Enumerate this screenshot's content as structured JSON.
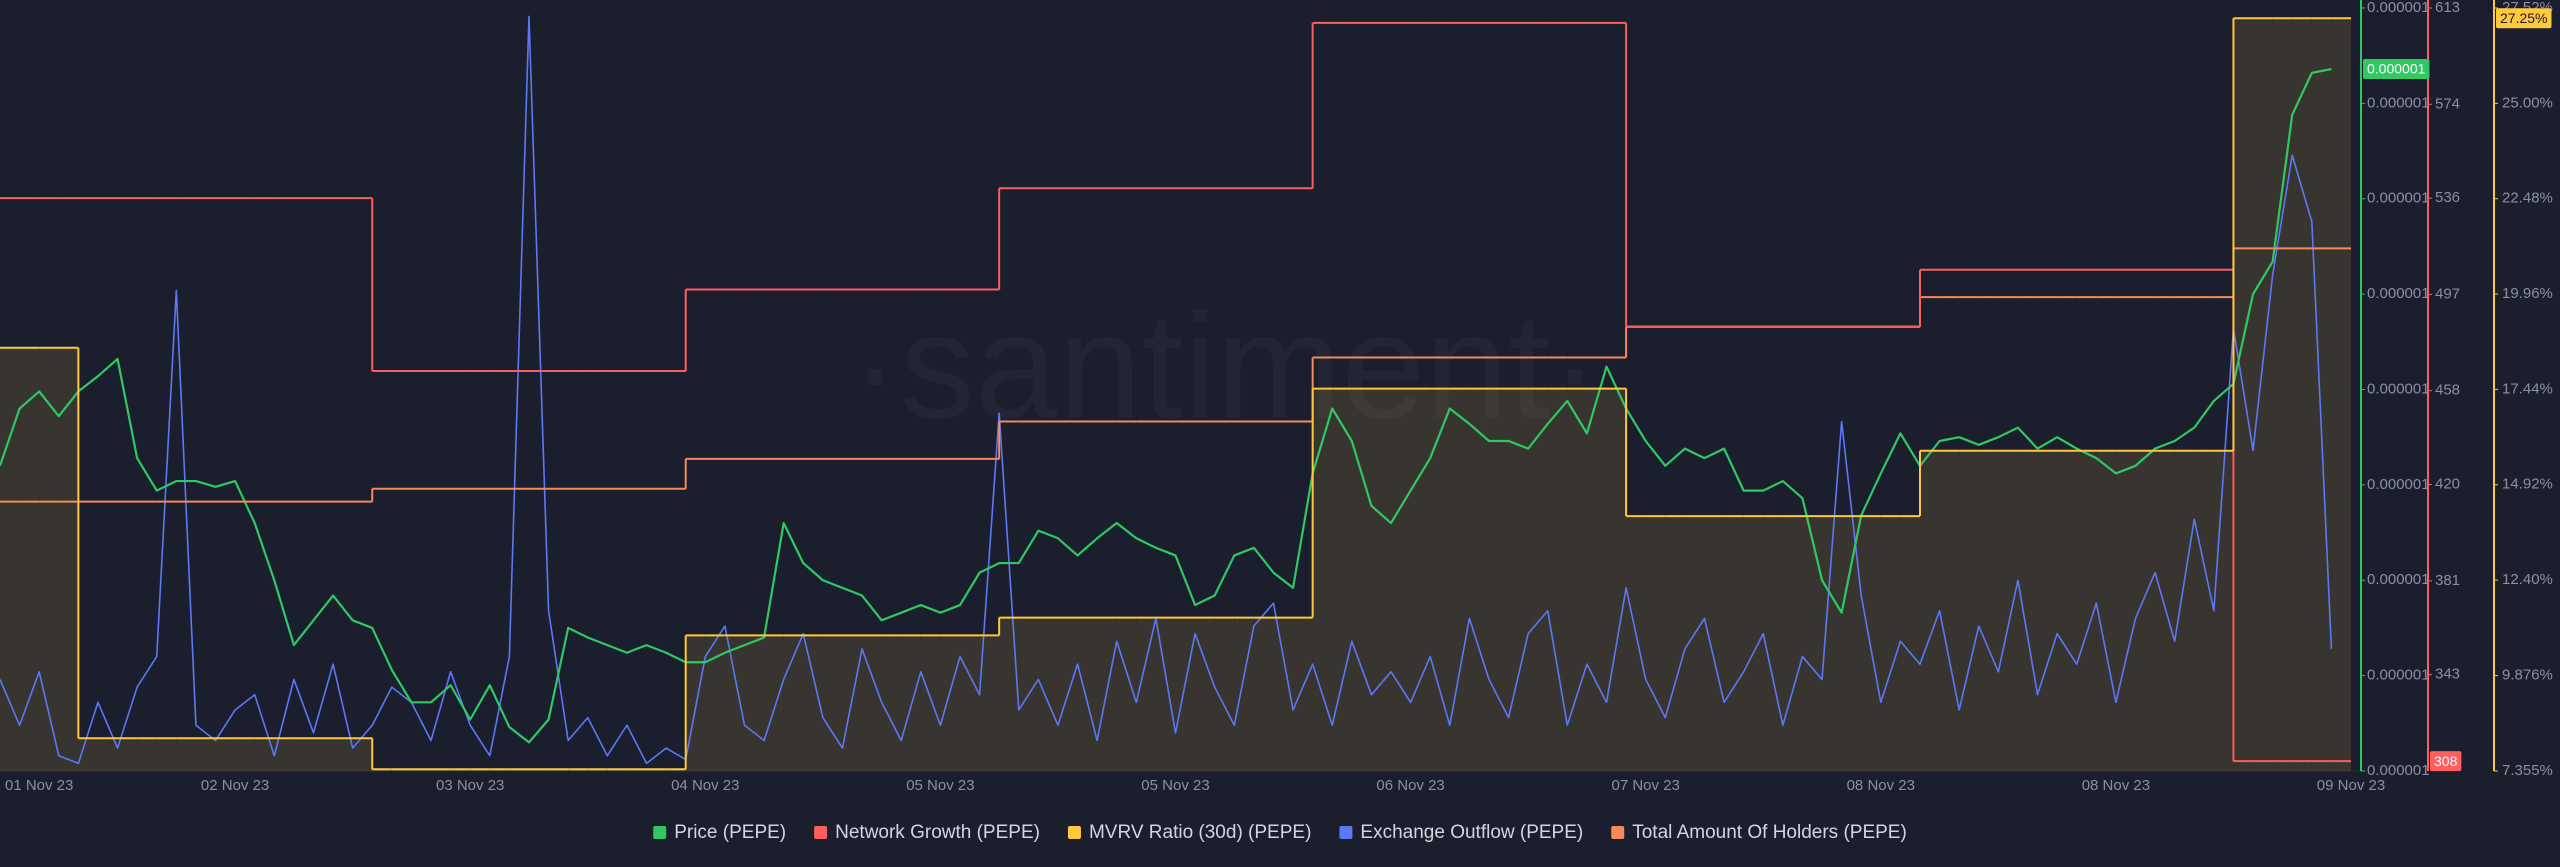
{
  "chart_data": {
    "type": "line",
    "watermark": "·santiment·",
    "legend": "bottom",
    "categories": [
      null,
      null,
      "01 Nov 23",
      null,
      null,
      null,
      null,
      null,
      null,
      null,
      null,
      null,
      "02 Nov 23",
      null,
      null,
      null,
      null,
      null,
      null,
      null,
      null,
      null,
      null,
      null,
      "03 Nov 23",
      null,
      null,
      null,
      null,
      null,
      null,
      null,
      null,
      null,
      null,
      null,
      "04 Nov 23",
      null,
      null,
      null,
      null,
      null,
      null,
      null,
      null,
      null,
      null,
      null,
      "05 Nov 23",
      null,
      null,
      null,
      null,
      null,
      null,
      null,
      null,
      null,
      null,
      null,
      "05 Nov 23",
      null,
      null,
      null,
      null,
      null,
      null,
      null,
      null,
      null,
      null,
      null,
      "06 Nov 23",
      null,
      null,
      null,
      null,
      null,
      null,
      null,
      null,
      null,
      null,
      null,
      "07 Nov 23",
      null,
      null,
      null,
      null,
      null,
      null,
      null,
      null,
      null,
      null,
      null,
      "08 Nov 23",
      null,
      null,
      null,
      null,
      null,
      null,
      null,
      null,
      null,
      null,
      null,
      "08 Nov 23",
      null,
      null,
      null,
      null,
      null,
      null,
      null,
      null,
      null,
      null,
      null,
      "09 Nov 23"
    ],
    "ylim": [
      1e-06,
      1.4e-06
    ],
    "yticks": [
      {
        "value": 1.4e-06,
        "label": "0.000001"
      },
      {
        "value": 1.35e-06,
        "label": "0.000001"
      },
      {
        "value": 1.3e-06,
        "label": "0.000001"
      },
      {
        "value": 1.25e-06,
        "label": "0.000001"
      },
      {
        "value": 1.2e-06,
        "label": "0.000001"
      },
      {
        "value": 1.15e-06,
        "label": "0.000001"
      },
      {
        "value": 1.1e-06,
        "label": "0.000001"
      },
      {
        "value": 1.05e-06,
        "label": "0.000001"
      },
      {
        "value": 1e-06,
        "label": "0.000001"
      }
    ],
    "y2lim": [
      304,
      613
    ],
    "y2ticks": [
      613,
      574,
      536,
      497,
      458,
      420,
      381,
      343
    ],
    "y3lim": [
      7.355,
      27.52
    ],
    "y3ticks": [
      {
        "value": 27.52,
        "label": "27.52%"
      },
      {
        "value": 25.0,
        "label": "25.00%"
      },
      {
        "value": 22.48,
        "label": "22.48%"
      },
      {
        "value": 19.96,
        "label": "19.96%"
      },
      {
        "value": 17.44,
        "label": "17.44%"
      },
      {
        "value": 14.92,
        "label": "14.92%"
      },
      {
        "value": 12.4,
        "label": "12.40%"
      },
      {
        "value": 9.876,
        "label": "9.876%"
      },
      {
        "value": 7.355,
        "label": "7.355%"
      }
    ],
    "y4lim": [
      140000,
      150000
    ],
    "y5lim": [
      0,
      1000
    ],
    "series": [
      {
        "name": "Price (PEPE)",
        "color": "#2fc862",
        "axis": "y",
        "last_value_label": "0.000001",
        "values": [
          1.16e-06,
          1.19e-06,
          1.199e-06,
          1.186e-06,
          1.199e-06,
          1.207e-06,
          1.216e-06,
          1.164e-06,
          1.147e-06,
          1.152e-06,
          1.152e-06,
          1.149e-06,
          1.152e-06,
          1.13e-06,
          1.1e-06,
          1.066e-06,
          1.079e-06,
          1.092e-06,
          1.079e-06,
          1.075e-06,
          1.053e-06,
          1.036e-06,
          1.036e-06,
          1.045e-06,
          1.027e-06,
          1.045e-06,
          1.023e-06,
          1.015e-06,
          1.027e-06,
          1.075e-06,
          1.07e-06,
          1.066e-06,
          1.062e-06,
          1.066e-06,
          1.062e-06,
          1.057e-06,
          1.057e-06,
          1.062e-06,
          1.066e-06,
          1.07e-06,
          1.13e-06,
          1.109e-06,
          1.1e-06,
          1.096e-06,
          1.092e-06,
          1.079e-06,
          1.083e-06,
          1.087e-06,
          1.083e-06,
          1.087e-06,
          1.104e-06,
          1.109e-06,
          1.109e-06,
          1.126e-06,
          1.122e-06,
          1.113e-06,
          1.122e-06,
          1.13e-06,
          1.122e-06,
          1.117e-06,
          1.113e-06,
          1.087e-06,
          1.092e-06,
          1.113e-06,
          1.117e-06,
          1.104e-06,
          1.096e-06,
          1.156e-06,
          1.19e-06,
          1.173e-06,
          1.139e-06,
          1.13e-06,
          1.147e-06,
          1.164e-06,
          1.19e-06,
          1.182e-06,
          1.173e-06,
          1.173e-06,
          1.169e-06,
          1.182e-06,
          1.194e-06,
          1.177e-06,
          1.212e-06,
          1.19e-06,
          1.173e-06,
          1.16e-06,
          1.169e-06,
          1.164e-06,
          1.169e-06,
          1.147e-06,
          1.147e-06,
          1.152e-06,
          1.143e-06,
          1.1e-06,
          1.083e-06,
          1.134e-06,
          1.156e-06,
          1.177e-06,
          1.16e-06,
          1.173e-06,
          1.175e-06,
          1.171e-06,
          1.175e-06,
          1.18e-06,
          1.169e-06,
          1.175e-06,
          1.169e-06,
          1.164e-06,
          1.156e-06,
          1.16e-06,
          1.169e-06,
          1.173e-06,
          1.18e-06,
          1.194e-06,
          1.203e-06,
          1.25e-06,
          1.267e-06,
          1.344e-06,
          1.366e-06,
          1.368e-06,
          null
        ]
      },
      {
        "name": "Network Growth (PEPE)",
        "color": "#ff5e5e",
        "axis": "y2",
        "step": true,
        "values": [
          536,
          536,
          536,
          536,
          536,
          536,
          536,
          536,
          536,
          536,
          536,
          536,
          536,
          536,
          536,
          536,
          536,
          536,
          536,
          466,
          466,
          466,
          466,
          466,
          466,
          466,
          466,
          466,
          466,
          466,
          466,
          466,
          466,
          466,
          466,
          499,
          499,
          499,
          499,
          499,
          499,
          499,
          499,
          499,
          499,
          499,
          499,
          499,
          499,
          499,
          499,
          540,
          540,
          540,
          540,
          540,
          540,
          540,
          540,
          540,
          540,
          540,
          540,
          540,
          540,
          540,
          540,
          607,
          607,
          607,
          607,
          607,
          607,
          607,
          607,
          607,
          607,
          607,
          607,
          607,
          607,
          607,
          607,
          484,
          484,
          484,
          484,
          484,
          484,
          484,
          484,
          484,
          484,
          484,
          484,
          484,
          484,
          484,
          507,
          507,
          507,
          507,
          507,
          507,
          507,
          507,
          507,
          507,
          507,
          507,
          507,
          507,
          507,
          507,
          308,
          308,
          308,
          308,
          308,
          308,
          null
        ]
      },
      {
        "name": "MVRV Ratio (30d) (PEPE)",
        "color": "#ffc83d",
        "axis": "y3",
        "step": true,
        "area": true,
        "last_value_label": "27.25%",
        "values": [
          18.54,
          18.54,
          18.54,
          18.54,
          8.22,
          8.22,
          8.22,
          8.22,
          8.22,
          8.22,
          8.22,
          8.22,
          8.22,
          8.22,
          8.22,
          8.22,
          8.22,
          8.22,
          8.22,
          7.4,
          7.4,
          7.4,
          7.4,
          7.4,
          7.4,
          7.4,
          7.4,
          7.4,
          7.4,
          7.4,
          7.4,
          7.4,
          7.4,
          7.4,
          7.4,
          10.94,
          10.94,
          10.94,
          10.94,
          10.94,
          10.94,
          10.94,
          10.94,
          10.94,
          10.94,
          10.94,
          10.94,
          10.94,
          10.94,
          10.94,
          10.94,
          11.41,
          11.41,
          11.41,
          11.41,
          11.41,
          11.41,
          11.41,
          11.41,
          11.41,
          11.41,
          11.41,
          11.41,
          11.41,
          11.41,
          11.41,
          11.41,
          17.46,
          17.46,
          17.46,
          17.46,
          17.46,
          17.46,
          17.46,
          17.46,
          17.46,
          17.46,
          17.46,
          17.46,
          17.46,
          17.46,
          17.46,
          17.46,
          14.09,
          14.09,
          14.09,
          14.09,
          14.09,
          14.09,
          14.09,
          14.09,
          14.09,
          14.09,
          14.09,
          14.09,
          14.09,
          14.09,
          14.09,
          15.82,
          15.82,
          15.82,
          15.82,
          15.82,
          15.82,
          15.82,
          15.82,
          15.82,
          15.82,
          15.82,
          15.82,
          15.82,
          15.82,
          15.82,
          15.82,
          27.25,
          27.25,
          27.25,
          27.25,
          27.25,
          27.25,
          null
        ]
      },
      {
        "name": "Exchange Outflow (PEPE)",
        "color": "#5b78f6",
        "axis": "y5",
        "values": [
          120,
          60,
          130,
          20,
          10,
          90,
          30,
          110,
          150,
          630,
          60,
          40,
          80,
          100,
          20,
          120,
          50,
          140,
          30,
          60,
          110,
          90,
          40,
          130,
          60,
          20,
          150,
          989,
          210,
          40,
          70,
          20,
          60,
          10,
          30,
          15,
          150,
          190,
          60,
          40,
          120,
          180,
          70,
          30,
          160,
          90,
          40,
          130,
          60,
          150,
          100,
          469,
          80,
          120,
          60,
          140,
          40,
          170,
          90,
          200,
          50,
          180,
          110,
          60,
          190,
          220,
          80,
          140,
          60,
          170,
          100,
          130,
          90,
          150,
          60,
          200,
          120,
          70,
          180,
          210,
          60,
          140,
          90,
          240,
          120,
          70,
          160,
          200,
          90,
          130,
          180,
          60,
          150,
          120,
          458,
          230,
          90,
          170,
          140,
          210,
          80,
          190,
          130,
          250,
          100,
          180,
          140,
          220,
          90,
          200,
          260,
          170,
          330,
          210,
          580,
          420,
          650,
          807,
          720,
          160,
          null
        ]
      },
      {
        "name": "Total Amount Of Holders (PEPE)",
        "color": "#f7895a",
        "axis": "y4",
        "step": true,
        "values": [
          143530,
          143530,
          143530,
          143530,
          143530,
          143530,
          143530,
          143530,
          143530,
          143530,
          143530,
          143530,
          143530,
          143530,
          143530,
          143530,
          143530,
          143530,
          143530,
          143700,
          143700,
          143700,
          143700,
          143700,
          143700,
          143700,
          143700,
          143700,
          143700,
          143700,
          143700,
          143700,
          143700,
          143700,
          143700,
          144090,
          144090,
          144090,
          144090,
          144090,
          144090,
          144090,
          144090,
          144090,
          144090,
          144090,
          144090,
          144090,
          144090,
          144090,
          144090,
          144580,
          144580,
          144580,
          144580,
          144580,
          144580,
          144580,
          144580,
          144580,
          144580,
          144580,
          144580,
          144580,
          144580,
          144580,
          144580,
          145420,
          145420,
          145420,
          145420,
          145420,
          145420,
          145420,
          145420,
          145420,
          145420,
          145420,
          145420,
          145420,
          145420,
          145420,
          145420,
          145820,
          145820,
          145820,
          145820,
          145820,
          145820,
          145820,
          145820,
          145820,
          145820,
          145820,
          145820,
          145820,
          145820,
          145820,
          146210,
          146210,
          146210,
          146210,
          146210,
          146210,
          146210,
          146210,
          146210,
          146210,
          146210,
          146210,
          146210,
          146210,
          146210,
          146210,
          146850,
          146850,
          146850,
          146850,
          146850,
          146850,
          null
        ]
      }
    ]
  }
}
